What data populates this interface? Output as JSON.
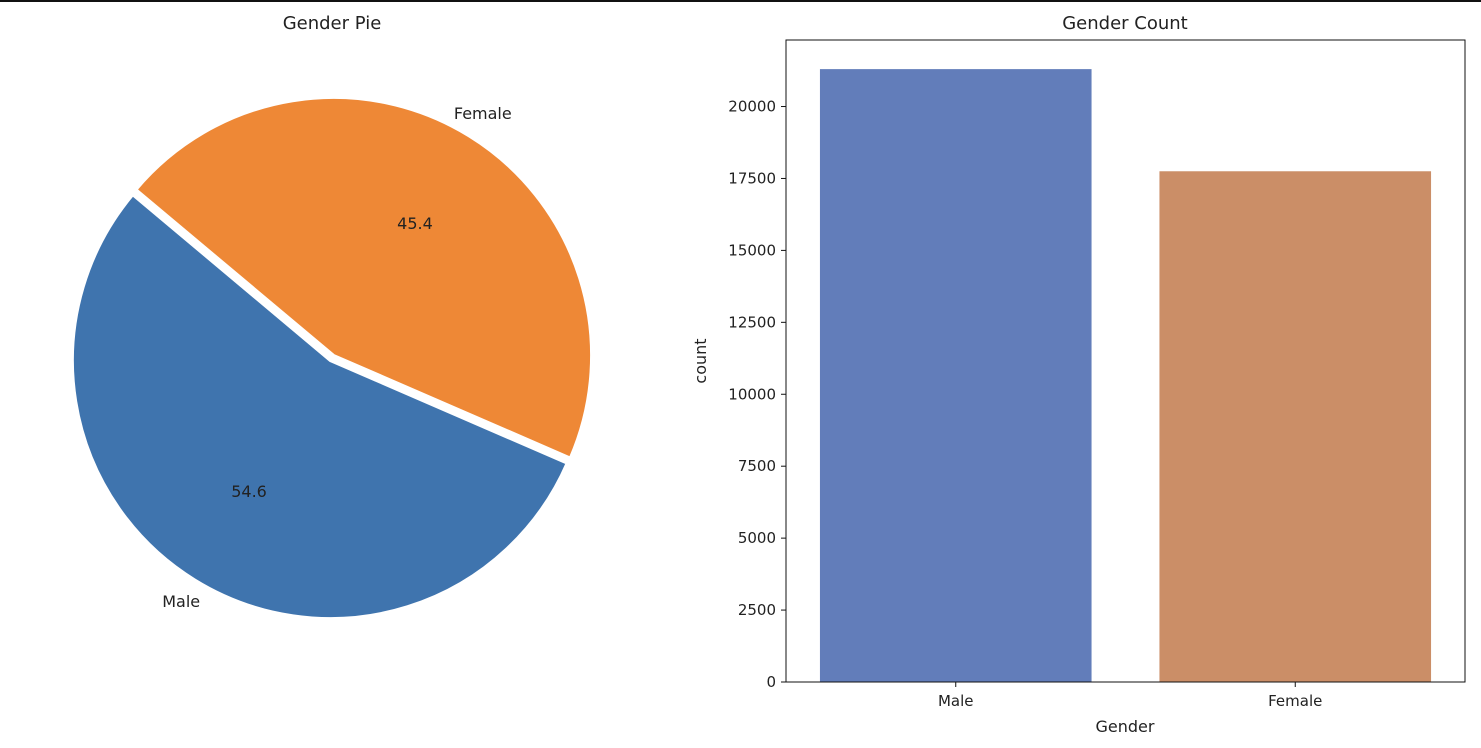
{
  "chart_data": [
    {
      "type": "pie",
      "title": "Gender Pie",
      "labels": [
        "Male",
        "Female"
      ],
      "values": [
        54.6,
        45.4
      ],
      "pct_labels": [
        "54.6",
        "45.4"
      ],
      "colors": [
        "#3f74ae",
        "#ee8836"
      ],
      "explode": true
    },
    {
      "type": "bar",
      "title": "Gender Count",
      "categories": [
        "Male",
        "Female"
      ],
      "values": [
        21300,
        17750
      ],
      "colors": [
        "#627dba",
        "#cb8e67"
      ],
      "xlabel": "Gender",
      "ylabel": "count",
      "ylim": [
        0,
        22312
      ],
      "yticks": [
        0,
        2500,
        5000,
        7500,
        10000,
        12500,
        15000,
        17500,
        20000
      ]
    }
  ]
}
